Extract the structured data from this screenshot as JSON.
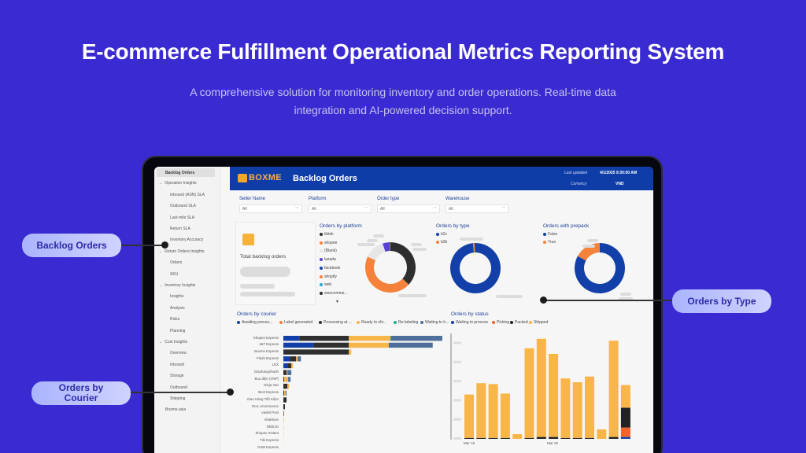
{
  "hero": {
    "title": "E-commerce Fulfillment Operational Metrics Reporting System",
    "subtitle": "A comprehensive solution for monitoring inventory and order operations. Real-time data integration and AI-powered decision support."
  },
  "callouts": {
    "backlog": "Backlog Orders",
    "type": "Orders by Type",
    "courier": "Orders by Courier"
  },
  "sidebar": {
    "items": [
      {
        "label": "Backlog Orders",
        "level": 0,
        "active": true
      },
      {
        "label": "Operation Insights",
        "level": 0,
        "group": true
      },
      {
        "label": "Inbound (ASN) SLA",
        "level": 1
      },
      {
        "label": "Outbound SLA",
        "level": 1
      },
      {
        "label": "Last-mile SLA",
        "level": 1
      },
      {
        "label": "Return SLA",
        "level": 1
      },
      {
        "label": "Inventory Accuracy",
        "level": 1
      },
      {
        "label": "Return Orders Insights",
        "level": 0,
        "group": true
      },
      {
        "label": "Orders",
        "level": 1
      },
      {
        "label": "SKU",
        "level": 1
      },
      {
        "label": "Inventory Insights",
        "level": 0,
        "group": true
      },
      {
        "label": "Insights",
        "level": 1
      },
      {
        "label": "Analysis",
        "level": 1
      },
      {
        "label": "Risks",
        "level": 1
      },
      {
        "label": "Planning",
        "level": 1
      },
      {
        "label": "Cost Insights",
        "level": 0,
        "group": true
      },
      {
        "label": "Overview",
        "level": 1
      },
      {
        "label": "Inbound",
        "level": 1
      },
      {
        "label": "Storage",
        "level": 1
      },
      {
        "label": "Outbound",
        "level": 1
      },
      {
        "label": "Shipping",
        "level": 1
      },
      {
        "label": "Boxme.asia",
        "level": 0
      }
    ]
  },
  "header": {
    "logo": "BOXME",
    "title": "Backlog Orders",
    "last_updated_label": "Last updated",
    "last_updated_value": "4/1/2025 9:30:00 AM",
    "currency_label": "Currency",
    "currency_value": "VND"
  },
  "filters": [
    {
      "label": "Seller Name",
      "value": "All"
    },
    {
      "label": "Platform",
      "value": "All"
    },
    {
      "label": "Order type",
      "value": "All"
    },
    {
      "label": "Warehouse",
      "value": "All"
    }
  ],
  "kpi": {
    "label": "Total backlog orders"
  },
  "colors": {
    "navy": "#1340a8",
    "orange": "#f5823a",
    "dark": "#2f2f2f",
    "yellow": "#f8b54a",
    "teal": "#1bb38f",
    "slate": "#4e6f99",
    "purple": "#5b3fd9",
    "cyan": "#27a9c9",
    "blank": "#e6e6e6"
  },
  "chart_data": [
    {
      "type": "pie",
      "title": "Orders by platform",
      "legend": [
        "tiktok",
        "shopee",
        "(Blank)",
        "lazada",
        "facebook",
        "shopify",
        "web",
        "woocomme..."
      ],
      "values": [
        37,
        45,
        13,
        4,
        0.5,
        0.3,
        0.1,
        0.1
      ]
    },
    {
      "type": "pie",
      "title": "Orders by type",
      "legend": [
        "b2c",
        "b2b"
      ],
      "values": [
        99,
        1
      ]
    },
    {
      "type": "pie",
      "title": "Orders with prepack",
      "legend": [
        "False",
        "True"
      ],
      "values": [
        83,
        17
      ]
    },
    {
      "type": "bar",
      "orientation": "horizontal",
      "stacked": true,
      "title": "Orders by courier",
      "legend": [
        "Awaiting proces...",
        "Label generated",
        "Processing at ...",
        "Ready to shi...",
        "Re-labeling",
        "Waiting to h..."
      ],
      "categories": [
        "Shopee Express",
        "J&T Express",
        "Boxme Express",
        "Flash Express",
        "LEX",
        "Giaohangnhanh",
        "Buu điện (VNP)",
        "Ninja Van",
        "Best Express",
        "Giao Hàng Tiết Kiệm",
        "DHL eCommerce",
        "Viettel Post",
        "AhaMove",
        "Nhất tín",
        "Shopee Instant",
        "Tiki Express",
        "Grab Express"
      ],
      "series": [
        {
          "name": "Awaiting proces...",
          "values": [
            20,
            38,
            0,
            8,
            5,
            0,
            0,
            0,
            0,
            0,
            0,
            0,
            0,
            0,
            0,
            0,
            0
          ]
        },
        {
          "name": "Label generated",
          "values": [
            0,
            0,
            0,
            0,
            0,
            0,
            0,
            0,
            0,
            0,
            0,
            0,
            0,
            0,
            0,
            0,
            0
          ]
        },
        {
          "name": "Processing at ...",
          "values": [
            62,
            44,
            82,
            8,
            5,
            4,
            1,
            5,
            1,
            4,
            2,
            0.5,
            0,
            0,
            0,
            0,
            0
          ]
        },
        {
          "name": "Ready to shi...",
          "values": [
            52,
            50,
            3,
            2,
            2,
            1,
            5,
            2,
            2,
            0,
            0,
            0.5,
            0.6,
            0.4,
            0.3,
            0.2,
            0.1
          ]
        },
        {
          "name": "Re-labeling",
          "values": [
            1,
            0,
            0,
            0,
            0,
            0,
            0,
            0,
            0,
            0,
            0,
            0,
            0,
            0,
            0,
            0,
            0
          ]
        },
        {
          "name": "Waiting to h...",
          "values": [
            64,
            55,
            0,
            4,
            0,
            5,
            3,
            0,
            1,
            0,
            0,
            0,
            0,
            0,
            0,
            0,
            0
          ]
        }
      ]
    },
    {
      "type": "bar",
      "stacked": true,
      "title": "Orders by status",
      "legend": [
        "Waiting to process",
        "Picking",
        "Packed",
        "Shipped"
      ],
      "x_ticks": [
        "Mar 19",
        "Mar 26"
      ],
      "categories": [
        "Mar 19",
        "Mar 20",
        "Mar 21",
        "Mar 22",
        "Mar 23",
        "Mar 24",
        "Mar 25",
        "Mar 26",
        "Mar 27",
        "Mar 28",
        "Mar 29",
        "Mar 30",
        "Mar 31",
        "Apr 1"
      ],
      "series": [
        {
          "name": "Waiting to process",
          "values": [
            0,
            0,
            0,
            0,
            0,
            0,
            0,
            0,
            0,
            0,
            0,
            0,
            0,
            2
          ]
        },
        {
          "name": "Picking",
          "values": [
            0,
            0,
            0,
            0,
            0,
            0,
            0,
            0,
            0,
            0,
            0,
            0,
            0,
            10
          ]
        },
        {
          "name": "Packed",
          "values": [
            1,
            1,
            1,
            1,
            0,
            1,
            2,
            2,
            1,
            1,
            1,
            0,
            2,
            21
          ]
        },
        {
          "name": "Shipped",
          "values": [
            46,
            58,
            57,
            47,
            5,
            95,
            104,
            88,
            63,
            59,
            65,
            10,
            102,
            24
          ]
        }
      ]
    }
  ]
}
